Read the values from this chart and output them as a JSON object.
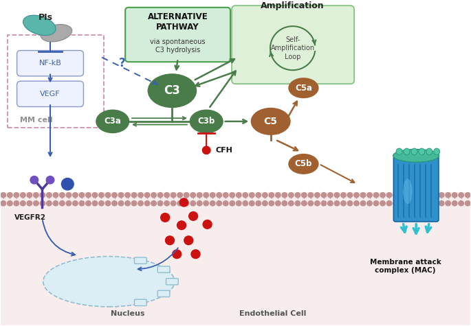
{
  "bg_color": "#ffffff",
  "endothelial_cell_label": "Endothelial Cell",
  "nucleus_label": "Nucleus",
  "mm_cell_label": "MM cell",
  "pi_label": "PIs",
  "alt_pathway_line1": "ALTERNATIVE",
  "alt_pathway_line2": "PATHWAY",
  "alt_pathway_line3": "via spontaneous",
  "alt_pathway_line4": "C3 hydrolysis",
  "alt_pathway_box_color": "#d4edda",
  "alt_pathway_border_color": "#4a9e4a",
  "amplification_label": "Amplification",
  "self_amp_label": "Self-\nAmplification\nLoop",
  "self_amp_box_color": "#dff0d8",
  "self_amp_border_color": "#7cbf7c",
  "nfkb_label": "NF-kB",
  "vegf_label": "VEGF",
  "vegfr2_label": "VEGFR2",
  "c3_label": "C3",
  "c3a_label": "C3a",
  "c3b_label": "C3b",
  "c5_label": "C5",
  "c5a_label": "C5a",
  "c5b_label": "C5b",
  "cfh_label": "CFH",
  "mac_label": "Membrane attack\ncomplex (MAC)",
  "green_dark": "#4a7c4a",
  "brown": "#a06030",
  "blue_dark": "#3a60b0",
  "pink_dashed_box": "#d090b0",
  "red_dot": "#cc1111",
  "teal_pill": "#5ab5aa",
  "gray_pill": "#aaaaaa",
  "cyan_arrow": "#30c0d0",
  "membrane_top_color": "#c8b0b0",
  "membrane_bot_color": "#d4bebe",
  "cell_bg": "#f8eded",
  "nucleus_fill": "#dceef5",
  "nucleus_edge": "#90bdd0"
}
